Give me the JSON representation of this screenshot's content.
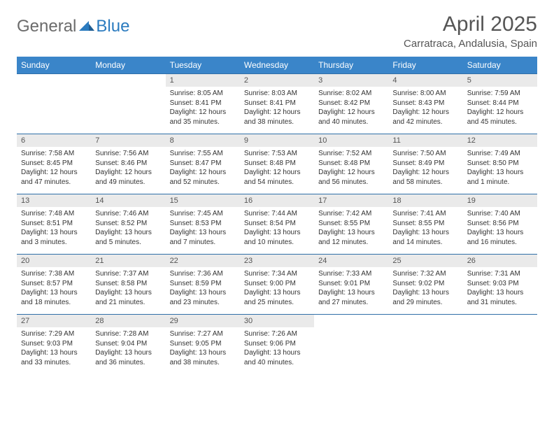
{
  "brand": {
    "part1": "General",
    "part2": "Blue"
  },
  "title": "April 2025",
  "location": "Carratraca, Andalusia, Spain",
  "colors": {
    "header_bg": "#3a85c9",
    "header_text": "#ffffff",
    "daynum_bg": "#eaeaea",
    "row_border": "#2f6fa8",
    "body_text": "#333333",
    "title_text": "#555555",
    "logo_gray": "#6b6b6b",
    "logo_blue": "#2b7bbf"
  },
  "weekdays": [
    "Sunday",
    "Monday",
    "Tuesday",
    "Wednesday",
    "Thursday",
    "Friday",
    "Saturday"
  ],
  "weeks": [
    {
      "nums": [
        "",
        "",
        "1",
        "2",
        "3",
        "4",
        "5"
      ],
      "cells": [
        null,
        null,
        {
          "sunrise": "8:05 AM",
          "sunset": "8:41 PM",
          "daylight": "12 hours and 35 minutes."
        },
        {
          "sunrise": "8:03 AM",
          "sunset": "8:41 PM",
          "daylight": "12 hours and 38 minutes."
        },
        {
          "sunrise": "8:02 AM",
          "sunset": "8:42 PM",
          "daylight": "12 hours and 40 minutes."
        },
        {
          "sunrise": "8:00 AM",
          "sunset": "8:43 PM",
          "daylight": "12 hours and 42 minutes."
        },
        {
          "sunrise": "7:59 AM",
          "sunset": "8:44 PM",
          "daylight": "12 hours and 45 minutes."
        }
      ]
    },
    {
      "nums": [
        "6",
        "7",
        "8",
        "9",
        "10",
        "11",
        "12"
      ],
      "cells": [
        {
          "sunrise": "7:58 AM",
          "sunset": "8:45 PM",
          "daylight": "12 hours and 47 minutes."
        },
        {
          "sunrise": "7:56 AM",
          "sunset": "8:46 PM",
          "daylight": "12 hours and 49 minutes."
        },
        {
          "sunrise": "7:55 AM",
          "sunset": "8:47 PM",
          "daylight": "12 hours and 52 minutes."
        },
        {
          "sunrise": "7:53 AM",
          "sunset": "8:48 PM",
          "daylight": "12 hours and 54 minutes."
        },
        {
          "sunrise": "7:52 AM",
          "sunset": "8:48 PM",
          "daylight": "12 hours and 56 minutes."
        },
        {
          "sunrise": "7:50 AM",
          "sunset": "8:49 PM",
          "daylight": "12 hours and 58 minutes."
        },
        {
          "sunrise": "7:49 AM",
          "sunset": "8:50 PM",
          "daylight": "13 hours and 1 minute."
        }
      ]
    },
    {
      "nums": [
        "13",
        "14",
        "15",
        "16",
        "17",
        "18",
        "19"
      ],
      "cells": [
        {
          "sunrise": "7:48 AM",
          "sunset": "8:51 PM",
          "daylight": "13 hours and 3 minutes."
        },
        {
          "sunrise": "7:46 AM",
          "sunset": "8:52 PM",
          "daylight": "13 hours and 5 minutes."
        },
        {
          "sunrise": "7:45 AM",
          "sunset": "8:53 PM",
          "daylight": "13 hours and 7 minutes."
        },
        {
          "sunrise": "7:44 AM",
          "sunset": "8:54 PM",
          "daylight": "13 hours and 10 minutes."
        },
        {
          "sunrise": "7:42 AM",
          "sunset": "8:55 PM",
          "daylight": "13 hours and 12 minutes."
        },
        {
          "sunrise": "7:41 AM",
          "sunset": "8:55 PM",
          "daylight": "13 hours and 14 minutes."
        },
        {
          "sunrise": "7:40 AM",
          "sunset": "8:56 PM",
          "daylight": "13 hours and 16 minutes."
        }
      ]
    },
    {
      "nums": [
        "20",
        "21",
        "22",
        "23",
        "24",
        "25",
        "26"
      ],
      "cells": [
        {
          "sunrise": "7:38 AM",
          "sunset": "8:57 PM",
          "daylight": "13 hours and 18 minutes."
        },
        {
          "sunrise": "7:37 AM",
          "sunset": "8:58 PM",
          "daylight": "13 hours and 21 minutes."
        },
        {
          "sunrise": "7:36 AM",
          "sunset": "8:59 PM",
          "daylight": "13 hours and 23 minutes."
        },
        {
          "sunrise": "7:34 AM",
          "sunset": "9:00 PM",
          "daylight": "13 hours and 25 minutes."
        },
        {
          "sunrise": "7:33 AM",
          "sunset": "9:01 PM",
          "daylight": "13 hours and 27 minutes."
        },
        {
          "sunrise": "7:32 AM",
          "sunset": "9:02 PM",
          "daylight": "13 hours and 29 minutes."
        },
        {
          "sunrise": "7:31 AM",
          "sunset": "9:03 PM",
          "daylight": "13 hours and 31 minutes."
        }
      ]
    },
    {
      "nums": [
        "27",
        "28",
        "29",
        "30",
        "",
        "",
        ""
      ],
      "cells": [
        {
          "sunrise": "7:29 AM",
          "sunset": "9:03 PM",
          "daylight": "13 hours and 33 minutes."
        },
        {
          "sunrise": "7:28 AM",
          "sunset": "9:04 PM",
          "daylight": "13 hours and 36 minutes."
        },
        {
          "sunrise": "7:27 AM",
          "sunset": "9:05 PM",
          "daylight": "13 hours and 38 minutes."
        },
        {
          "sunrise": "7:26 AM",
          "sunset": "9:06 PM",
          "daylight": "13 hours and 40 minutes."
        },
        null,
        null,
        null
      ]
    }
  ],
  "labels": {
    "sunrise": "Sunrise: ",
    "sunset": "Sunset: ",
    "daylight": "Daylight: "
  }
}
